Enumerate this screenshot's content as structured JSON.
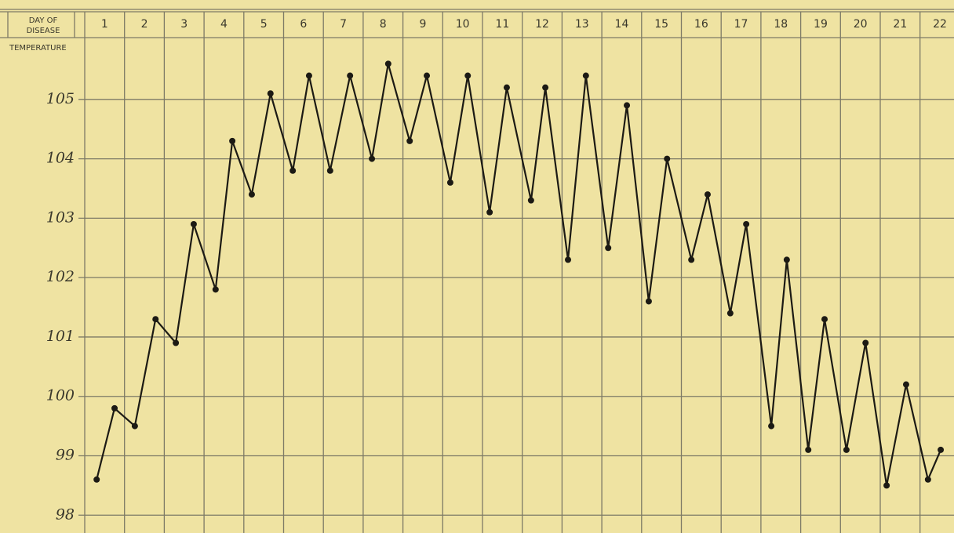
{
  "chart_data": {
    "type": "line",
    "x_label_lines": [
      "DAY OF",
      "DISEASE"
    ],
    "y_label": "TEMPERATURE",
    "categories": [
      "1",
      "2",
      "3",
      "4",
      "5",
      "6",
      "7",
      "8",
      "9",
      "10",
      "11",
      "12",
      "13",
      "14",
      "15",
      "16",
      "17",
      "18",
      "19",
      "20",
      "21",
      "22"
    ],
    "x": [
      1.3,
      1.75,
      2.26,
      2.78,
      3.29,
      3.74,
      4.29,
      4.71,
      5.2,
      5.67,
      6.23,
      6.64,
      7.17,
      7.67,
      8.22,
      8.63,
      9.17,
      9.6,
      10.19,
      10.63,
      11.18,
      11.61,
      12.22,
      12.58,
      13.15,
      13.6,
      14.16,
      14.63,
      15.18,
      15.64,
      16.25,
      16.66,
      17.23,
      17.63,
      18.26,
      18.65,
      19.19,
      19.6,
      20.15,
      20.63,
      21.16,
      21.65,
      22.2,
      22.52
    ],
    "values": [
      98.6,
      99.8,
      99.5,
      101.3,
      100.9,
      102.9,
      101.8,
      104.3,
      103.4,
      105.1,
      103.8,
      105.4,
      103.8,
      105.4,
      104.0,
      105.6,
      104.3,
      105.4,
      103.6,
      105.4,
      103.1,
      105.2,
      103.3,
      105.2,
      102.3,
      105.4,
      102.5,
      104.9,
      101.6,
      104.0,
      102.3,
      103.4,
      101.4,
      102.9,
      99.5,
      102.3,
      99.1,
      101.3,
      99.1,
      100.9,
      98.5,
      100.2,
      98.6,
      99.1
    ],
    "color": "#1c1a14",
    "xlim": [
      1,
      23
    ],
    "ylim": [
      97.7,
      105.75
    ],
    "yticks": [
      98,
      99,
      100,
      101,
      102,
      103,
      104,
      105
    ],
    "grid": true
  }
}
